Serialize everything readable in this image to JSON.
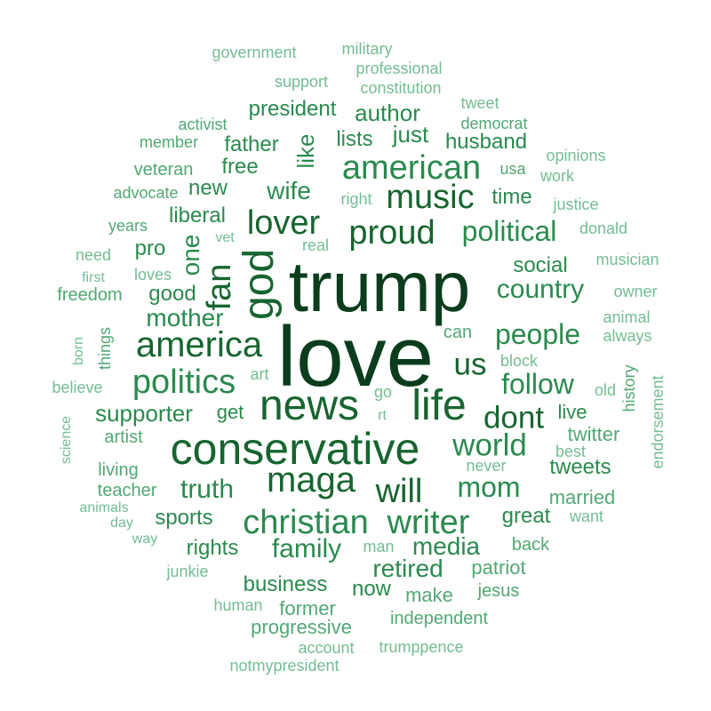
{
  "colors": {
    "darkest": "#0b3d1c",
    "dark": "#16652f",
    "mid": "#2a8a4e",
    "light": "#52a874",
    "lightest": "#74bd93",
    "background": "#ffffff"
  },
  "words": [
    {
      "text": "love",
      "tier": "darkest",
      "rank": 1
    },
    {
      "text": "trump",
      "tier": "darkest",
      "rank": 2
    },
    {
      "text": "conservative",
      "tier": "dark",
      "rank": 3
    },
    {
      "text": "news",
      "tier": "dark",
      "rank": 4
    },
    {
      "text": "life",
      "tier": "dark",
      "rank": 5
    },
    {
      "text": "god",
      "tier": "dark",
      "rank": 6
    },
    {
      "text": "america",
      "tier": "dark",
      "rank": 7
    },
    {
      "text": "maga",
      "tier": "dark",
      "rank": 8
    },
    {
      "text": "politics",
      "tier": "mid",
      "rank": 9
    },
    {
      "text": "christian",
      "tier": "mid",
      "rank": 10
    },
    {
      "text": "writer",
      "tier": "mid",
      "rank": 11
    },
    {
      "text": "american",
      "tier": "mid",
      "rank": 12
    },
    {
      "text": "will",
      "tier": "dark",
      "rank": 13
    },
    {
      "text": "proud",
      "tier": "dark",
      "rank": 14
    },
    {
      "text": "fan",
      "tier": "dark",
      "rank": 15
    },
    {
      "text": "lover",
      "tier": "dark",
      "rank": 16
    },
    {
      "text": "music",
      "tier": "dark",
      "rank": 17
    },
    {
      "text": "world",
      "tier": "mid",
      "rank": 18
    },
    {
      "text": "us",
      "tier": "dark",
      "rank": 19
    },
    {
      "text": "dont",
      "tier": "dark",
      "rank": 20
    },
    {
      "text": "mom",
      "tier": "mid",
      "rank": 21
    },
    {
      "text": "people",
      "tier": "mid",
      "rank": 22
    },
    {
      "text": "follow",
      "tier": "mid",
      "rank": 23
    },
    {
      "text": "political",
      "tier": "mid",
      "rank": 24
    },
    {
      "text": "country",
      "tier": "mid",
      "rank": 25
    },
    {
      "text": "family",
      "tier": "mid",
      "rank": 26
    },
    {
      "text": "truth",
      "tier": "mid",
      "rank": 27
    },
    {
      "text": "mother",
      "tier": "mid",
      "rank": 28
    },
    {
      "text": "retired",
      "tier": "mid",
      "rank": 29
    },
    {
      "text": "media",
      "tier": "mid",
      "rank": 30
    },
    {
      "text": "one",
      "tier": "mid",
      "rank": 31
    },
    {
      "text": "wife",
      "tier": "mid",
      "rank": 32
    },
    {
      "text": "supporter",
      "tier": "mid",
      "rank": 33
    },
    {
      "text": "like",
      "tier": "mid",
      "rank": 34
    },
    {
      "text": "author",
      "tier": "mid",
      "rank": 35
    },
    {
      "text": "just",
      "tier": "mid",
      "rank": 36
    },
    {
      "text": "president",
      "tier": "mid",
      "rank": 37
    },
    {
      "text": "father",
      "tier": "mid",
      "rank": 38
    },
    {
      "text": "liberal",
      "tier": "mid",
      "rank": 39
    },
    {
      "text": "business",
      "tier": "mid",
      "rank": 40
    },
    {
      "text": "sports",
      "tier": "mid",
      "rank": 41
    },
    {
      "text": "rights",
      "tier": "mid",
      "rank": 42
    },
    {
      "text": "social",
      "tier": "mid",
      "rank": 43
    },
    {
      "text": "great",
      "tier": "mid",
      "rank": 44
    },
    {
      "text": "tweets",
      "tier": "mid",
      "rank": 45
    },
    {
      "text": "new",
      "tier": "mid",
      "rank": 46
    },
    {
      "text": "time",
      "tier": "mid",
      "rank": 47
    },
    {
      "text": "husband",
      "tier": "mid",
      "rank": 48
    },
    {
      "text": "lists",
      "tier": "mid",
      "rank": 49
    },
    {
      "text": "pro",
      "tier": "mid",
      "rank": 50
    },
    {
      "text": "good",
      "tier": "mid",
      "rank": 51
    },
    {
      "text": "free",
      "tier": "mid",
      "rank": 52
    },
    {
      "text": "now",
      "tier": "mid",
      "rank": 53
    },
    {
      "text": "get",
      "tier": "mid",
      "rank": 54
    },
    {
      "text": "live",
      "tier": "mid",
      "rank": 55
    },
    {
      "text": "twitter",
      "tier": "light",
      "rank": 56
    },
    {
      "text": "patriot",
      "tier": "light",
      "rank": 57
    },
    {
      "text": "make",
      "tier": "light",
      "rank": 58
    },
    {
      "text": "former",
      "tier": "light",
      "rank": 59
    },
    {
      "text": "progressive",
      "tier": "light",
      "rank": 60
    },
    {
      "text": "married",
      "tier": "light",
      "rank": 61
    },
    {
      "text": "artist",
      "tier": "light",
      "rank": 62
    },
    {
      "text": "teacher",
      "tier": "light",
      "rank": 63
    },
    {
      "text": "living",
      "tier": "light",
      "rank": 64
    },
    {
      "text": "can",
      "tier": "light",
      "rank": 65
    },
    {
      "text": "freedom",
      "tier": "light",
      "rank": 66
    },
    {
      "text": "veteran",
      "tier": "light",
      "rank": 67
    },
    {
      "text": "member",
      "tier": "light",
      "rank": 68
    },
    {
      "text": "democrat",
      "tier": "light",
      "rank": 69
    },
    {
      "text": "usa",
      "tier": "light",
      "rank": 70
    },
    {
      "text": "back",
      "tier": "light",
      "rank": 71
    },
    {
      "text": "jesus",
      "tier": "light",
      "rank": 72
    },
    {
      "text": "independent",
      "tier": "light",
      "rank": 73
    },
    {
      "text": "history",
      "tier": "light",
      "rank": 74
    },
    {
      "text": "things",
      "tier": "light",
      "rank": 75
    },
    {
      "text": "advocate",
      "tier": "light",
      "rank": 76
    },
    {
      "text": "years",
      "tier": "light",
      "rank": 77
    },
    {
      "text": "activist",
      "tier": "light",
      "rank": 78
    },
    {
      "text": "support",
      "tier": "lightest",
      "rank": 79
    },
    {
      "text": "constitution",
      "tier": "lightest",
      "rank": 80
    },
    {
      "text": "government",
      "tier": "lightest",
      "rank": 81
    },
    {
      "text": "military",
      "tier": "lightest",
      "rank": 82
    },
    {
      "text": "professional",
      "tier": "lightest",
      "rank": 83
    },
    {
      "text": "tweet",
      "tier": "lightest",
      "rank": 84
    },
    {
      "text": "opinions",
      "tier": "lightest",
      "rank": 85
    },
    {
      "text": "work",
      "tier": "lightest",
      "rank": 86
    },
    {
      "text": "justice",
      "tier": "lightest",
      "rank": 87
    },
    {
      "text": "donald",
      "tier": "lightest",
      "rank": 88
    },
    {
      "text": "musician",
      "tier": "lightest",
      "rank": 89
    },
    {
      "text": "owner",
      "tier": "lightest",
      "rank": 90
    },
    {
      "text": "animal",
      "tier": "lightest",
      "rank": 91
    },
    {
      "text": "always",
      "tier": "lightest",
      "rank": 92
    },
    {
      "text": "old",
      "tier": "lightest",
      "rank": 93
    },
    {
      "text": "endorsement",
      "tier": "lightest",
      "rank": 94
    },
    {
      "text": "block",
      "tier": "lightest",
      "rank": 95
    },
    {
      "text": "best",
      "tier": "lightest",
      "rank": 96
    },
    {
      "text": "want",
      "tier": "lightest",
      "rank": 97
    },
    {
      "text": "never",
      "tier": "lightest",
      "rank": 98
    },
    {
      "text": "right",
      "tier": "lightest",
      "rank": 99
    },
    {
      "text": "vet",
      "tier": "lightest",
      "rank": 100
    },
    {
      "text": "real",
      "tier": "lightest",
      "rank": 101
    },
    {
      "text": "need",
      "tier": "lightest",
      "rank": 102
    },
    {
      "text": "first",
      "tier": "lightest",
      "rank": 103
    },
    {
      "text": "loves",
      "tier": "lightest",
      "rank": 104
    },
    {
      "text": "born",
      "tier": "lightest",
      "rank": 105
    },
    {
      "text": "believe",
      "tier": "lightest",
      "rank": 106
    },
    {
      "text": "art",
      "tier": "lightest",
      "rank": 107
    },
    {
      "text": "go",
      "tier": "lightest",
      "rank": 108
    },
    {
      "text": "rt",
      "tier": "lightest",
      "rank": 109
    },
    {
      "text": "science",
      "tier": "lightest",
      "rank": 110
    },
    {
      "text": "animals",
      "tier": "lightest",
      "rank": 111
    },
    {
      "text": "day",
      "tier": "lightest",
      "rank": 112
    },
    {
      "text": "way",
      "tier": "lightest",
      "rank": 113
    },
    {
      "text": "junkie",
      "tier": "lightest",
      "rank": 114
    },
    {
      "text": "man",
      "tier": "lightest",
      "rank": 115
    },
    {
      "text": "human",
      "tier": "lightest",
      "rank": 116
    },
    {
      "text": "account",
      "tier": "lightest",
      "rank": 117
    },
    {
      "text": "trumppence",
      "tier": "lightest",
      "rank": 118
    },
    {
      "text": "notmypresident",
      "tier": "lightest",
      "rank": 119
    }
  ]
}
